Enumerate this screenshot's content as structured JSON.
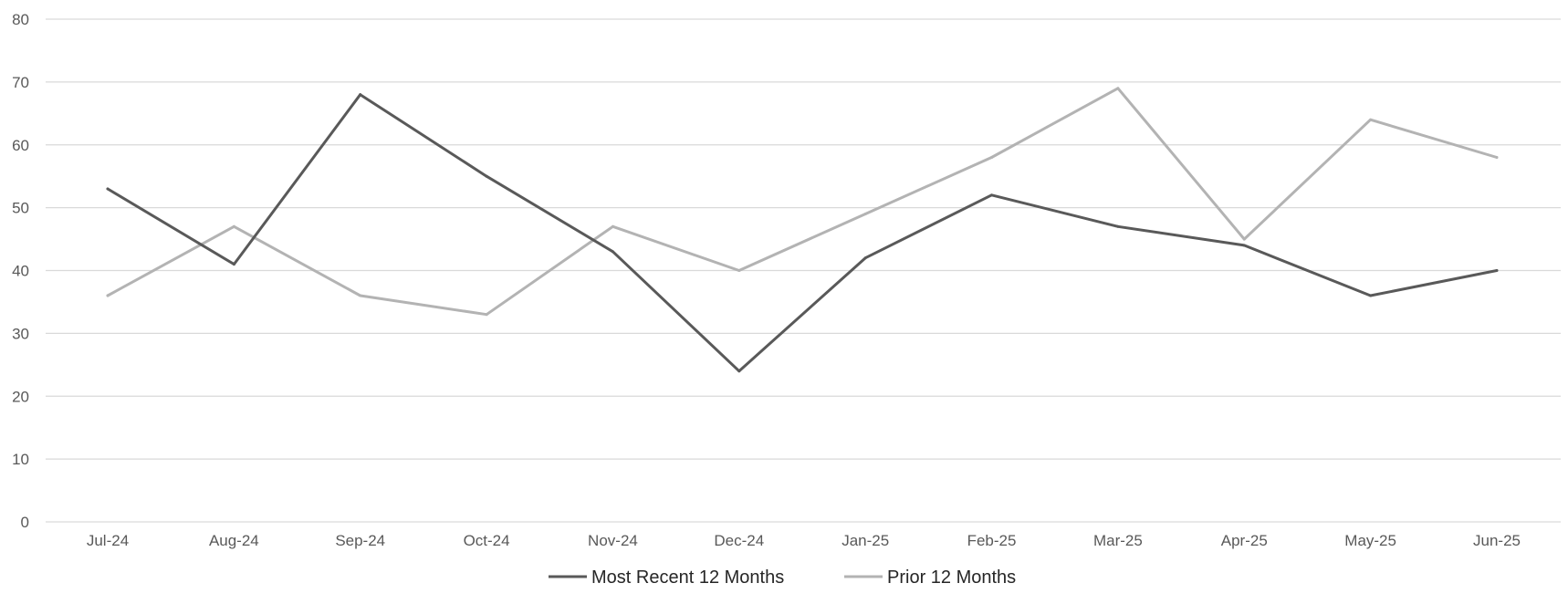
{
  "chart_data": {
    "type": "line",
    "categories": [
      "Jul-24",
      "Aug-24",
      "Sep-24",
      "Oct-24",
      "Nov-24",
      "Dec-24",
      "Jan-25",
      "Feb-25",
      "Mar-25",
      "Apr-25",
      "May-25",
      "Jun-25"
    ],
    "ylim": [
      0,
      80
    ],
    "y_ticks": [
      "0",
      "10",
      "20",
      "30",
      "40",
      "50",
      "60",
      "70",
      "80"
    ],
    "grid": true,
    "legend_position": "bottom",
    "series": [
      {
        "name": "Most Recent 12 Months",
        "color": "#595959",
        "values": [
          53,
          41,
          68,
          55,
          43,
          24,
          42,
          52,
          47,
          44,
          36,
          40
        ]
      },
      {
        "name": "Prior 12 Months",
        "color": "#b3b3b3",
        "values": [
          36,
          47,
          36,
          33,
          47,
          40,
          49,
          58,
          69,
          45,
          64,
          58
        ]
      }
    ]
  }
}
